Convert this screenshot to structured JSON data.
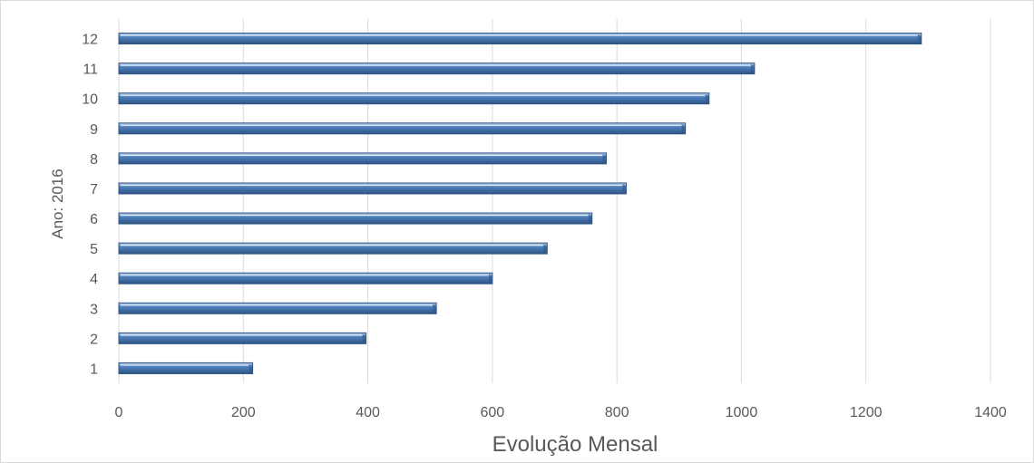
{
  "chart_data": {
    "type": "bar",
    "orientation": "horizontal",
    "categories": [
      "1",
      "2",
      "3",
      "4",
      "5",
      "6",
      "7",
      "8",
      "9",
      "10",
      "11",
      "12"
    ],
    "values": [
      215,
      397,
      510,
      600,
      688,
      760,
      815,
      783,
      910,
      948,
      1021,
      1289
    ],
    "xlabel": "Evolução Mensal",
    "ylabel": "Ano: 2016",
    "xlim": [
      0,
      1400
    ],
    "xticks": [
      "0",
      "200",
      "400",
      "600",
      "800",
      "1000",
      "1200",
      "1400"
    ],
    "grid": "vertical",
    "legend": "none",
    "colors": {
      "bar_light": "#bcd2ee",
      "bar_main": "#4f81bd",
      "bar_dark": "#2f5584",
      "gridline": "#d9d9d9",
      "text": "#595959"
    }
  }
}
